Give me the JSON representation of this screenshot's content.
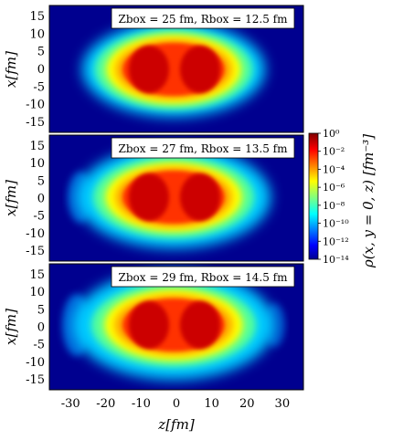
{
  "chart_data": {
    "type": "heatmap",
    "xlabel": "z[fm]",
    "ylabel": "x[fm]",
    "colorbar_label": "ρ(x, y = 0, z)  [fm⁻³]",
    "colorscale": "jet",
    "log_scale": true,
    "xlim": [
      -36,
      36
    ],
    "ylim": [
      -18,
      18
    ],
    "x_ticks": [
      -30,
      -20,
      -10,
      0,
      10,
      20,
      30
    ],
    "x_tick_labels": [
      "-30",
      "-20",
      "-10",
      "0",
      "10",
      "20",
      "30"
    ],
    "y_ticks": [
      15,
      10,
      5,
      0,
      -5,
      -10,
      -15
    ],
    "y_tick_labels": [
      "15",
      "10",
      "5",
      "0",
      "-5",
      "-10",
      "-15"
    ],
    "colorbar_ticks": [
      0,
      -2,
      -4,
      -6,
      -8,
      -10,
      -12,
      -14
    ],
    "colorbar_tick_labels": [
      "10⁰",
      "10⁻²",
      "10⁻⁴",
      "10⁻⁶",
      "10⁻⁸",
      "10⁻¹⁰",
      "10⁻¹²",
      "10⁻¹⁴"
    ],
    "panels": [
      {
        "label": "Zbox = 25 fm, Rbox = 12.5 fm",
        "Z_box": 25,
        "R_box": 12.5
      },
      {
        "label": "Zbox = 27 fm, Rbox = 13.5 fm",
        "Z_box": 27,
        "R_box": 13.5
      },
      {
        "label": "Zbox = 29 fm, Rbox = 14.5 fm",
        "Z_box": 29,
        "R_box": 14.5
      }
    ]
  }
}
